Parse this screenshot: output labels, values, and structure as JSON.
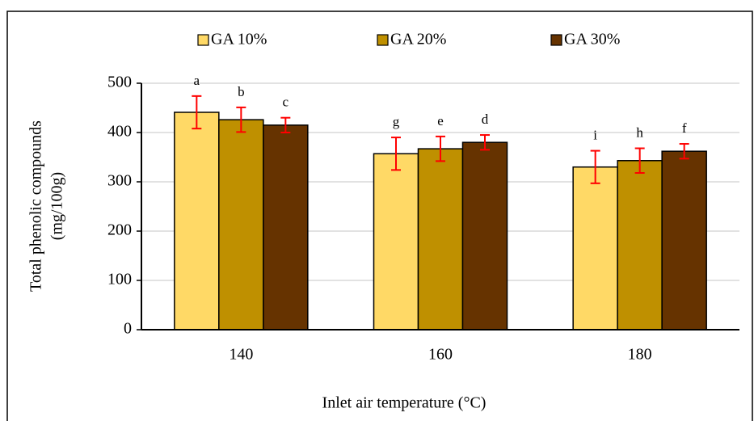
{
  "chart_data": {
    "type": "bar",
    "x_label": "Inlet air temperature (°C)",
    "y_label": [
      "Total phenolic compounds",
      "(mg/100g)"
    ],
    "categories": [
      "140",
      "160",
      "180"
    ],
    "series": [
      {
        "name": "GA 10%",
        "color": "#ffd966",
        "values": [
          441,
          357,
          330
        ],
        "errors": [
          33,
          33,
          33
        ],
        "letters": [
          "a",
          "g",
          "i"
        ]
      },
      {
        "name": "GA 20%",
        "color": "#bf9000",
        "values": [
          426,
          367,
          343
        ],
        "errors": [
          25,
          25,
          25
        ],
        "letters": [
          "b",
          "e",
          "h"
        ]
      },
      {
        "name": "GA 30%",
        "color": "#663300",
        "values": [
          415,
          380,
          362
        ],
        "errors": [
          15,
          15,
          15
        ],
        "letters": [
          "c",
          "d",
          "f"
        ]
      }
    ],
    "ylim": [
      0,
      500
    ],
    "yticks": [
      0,
      100,
      200,
      300,
      400,
      500
    ],
    "grid": true,
    "error_color": "#ff0000"
  }
}
